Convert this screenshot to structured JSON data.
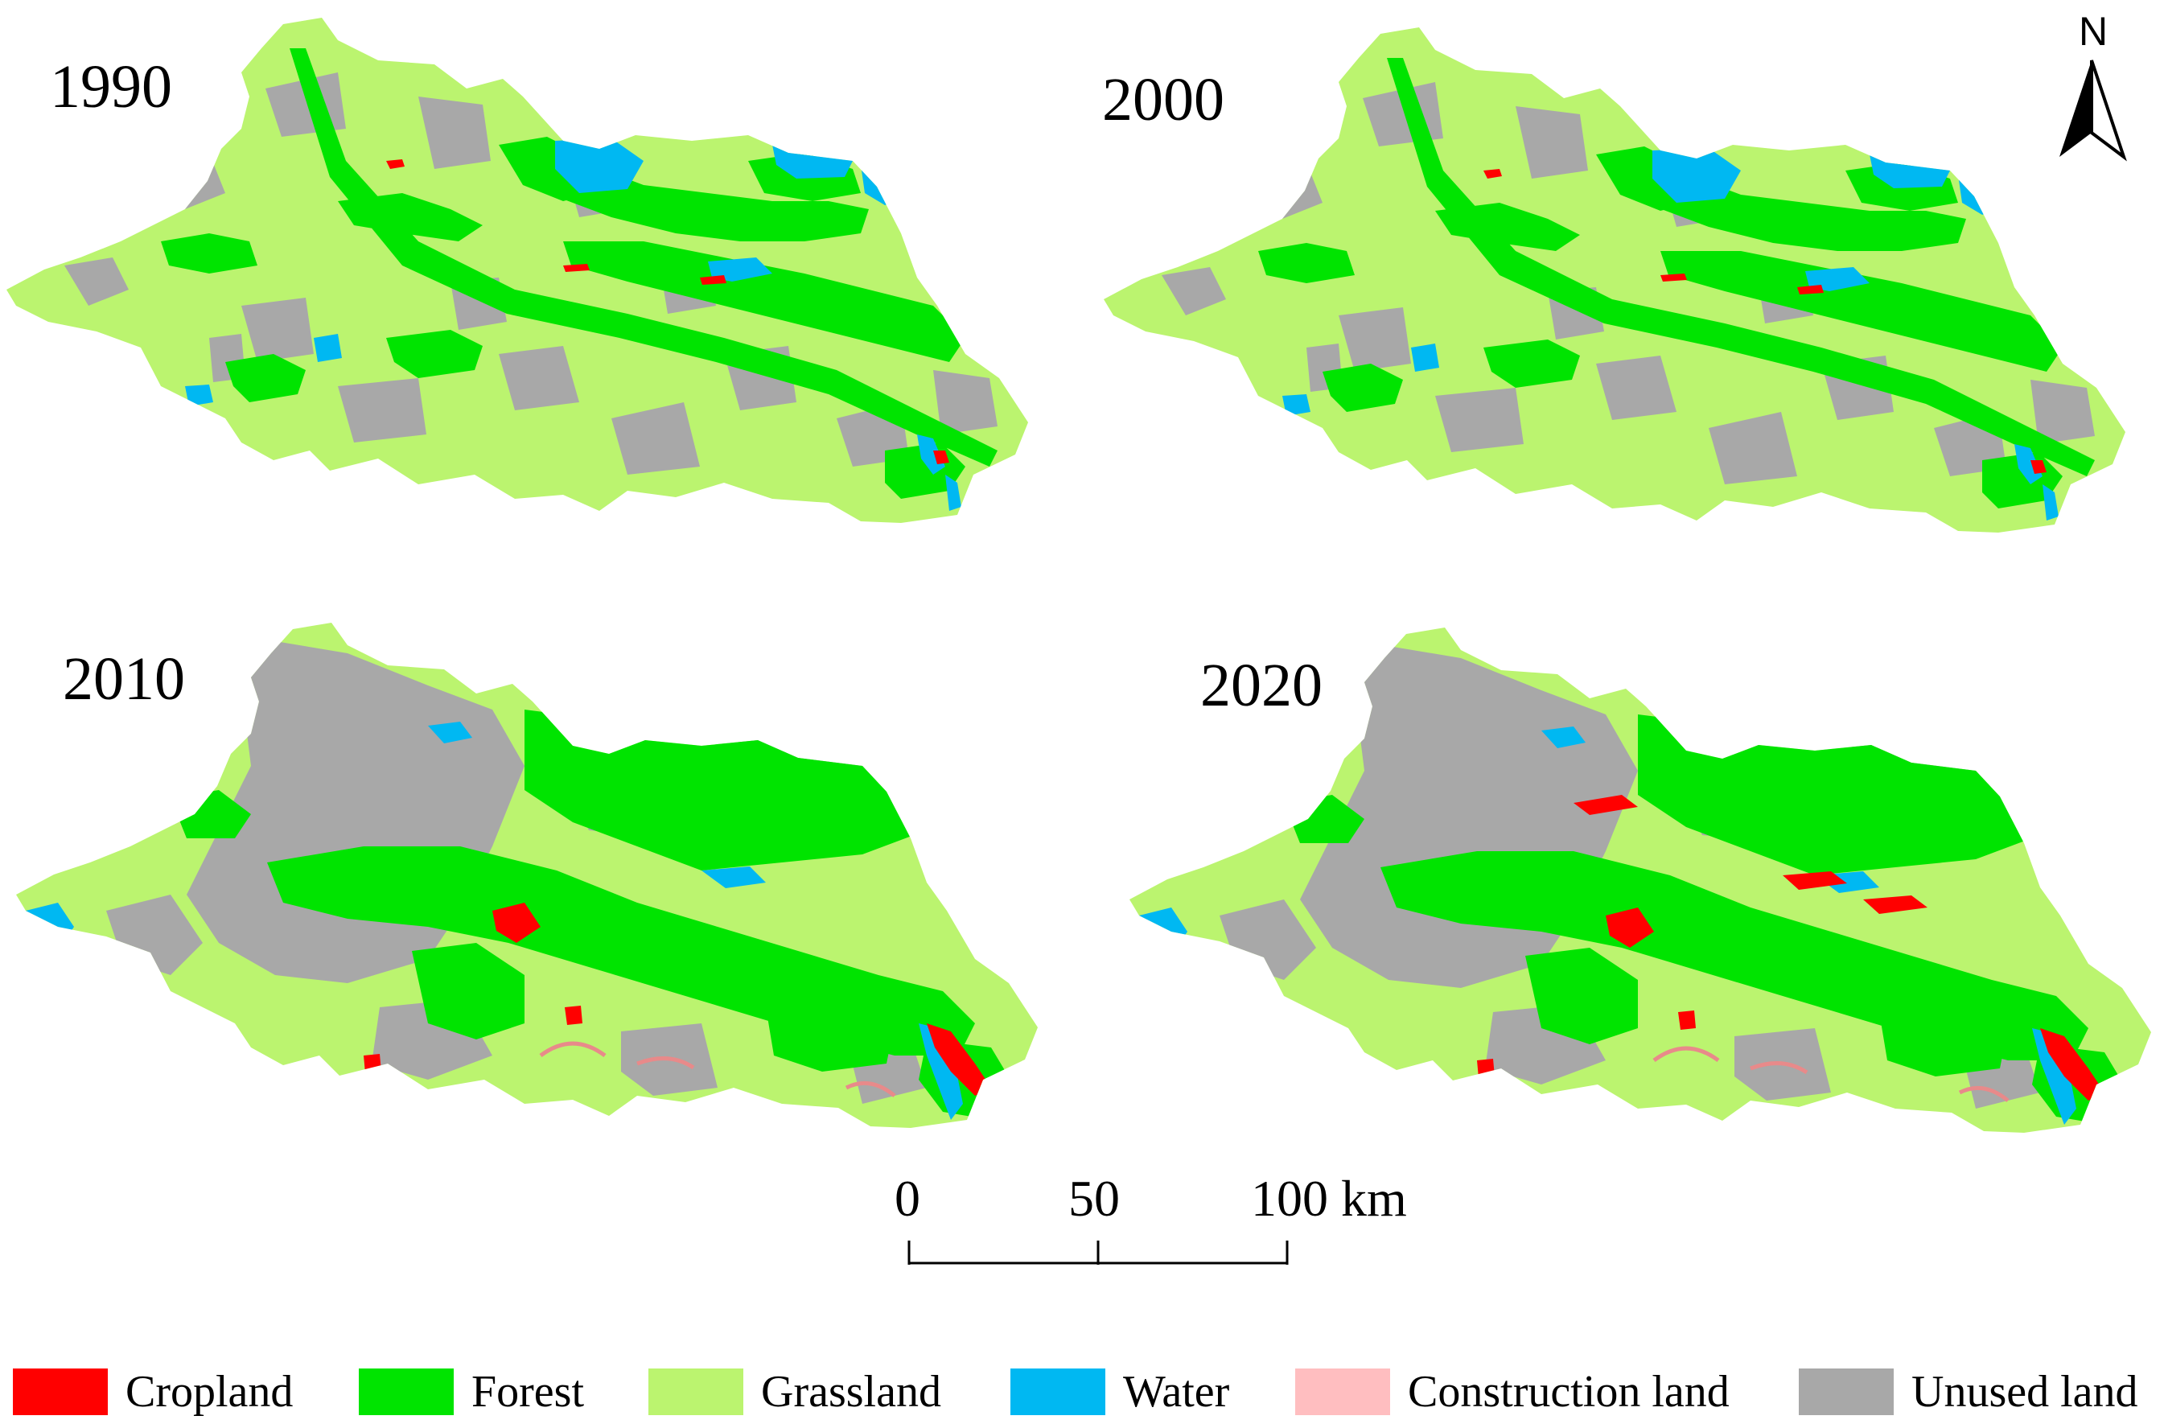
{
  "maps": [
    {
      "year": "1990",
      "period": "p1990"
    },
    {
      "year": "2000",
      "period": "p2000"
    },
    {
      "year": "2010",
      "period": "p2010"
    },
    {
      "year": "2020",
      "period": "p2020"
    }
  ],
  "north_arrow": {
    "letter": "N"
  },
  "scale_bar": {
    "ticks": [
      "0",
      "50",
      "100 km"
    ],
    "unit": "km"
  },
  "legend": [
    {
      "label": "Cropland",
      "color": "#ff0000"
    },
    {
      "label": "Forest",
      "color": "#00e400"
    },
    {
      "label": "Grassland",
      "color": "#bbf46f"
    },
    {
      "label": "Water",
      "color": "#00b8f2"
    },
    {
      "label": "Construction land",
      "color": "#ffbec0"
    },
    {
      "label": "Unused land",
      "color": "#a8a8a8"
    }
  ]
}
